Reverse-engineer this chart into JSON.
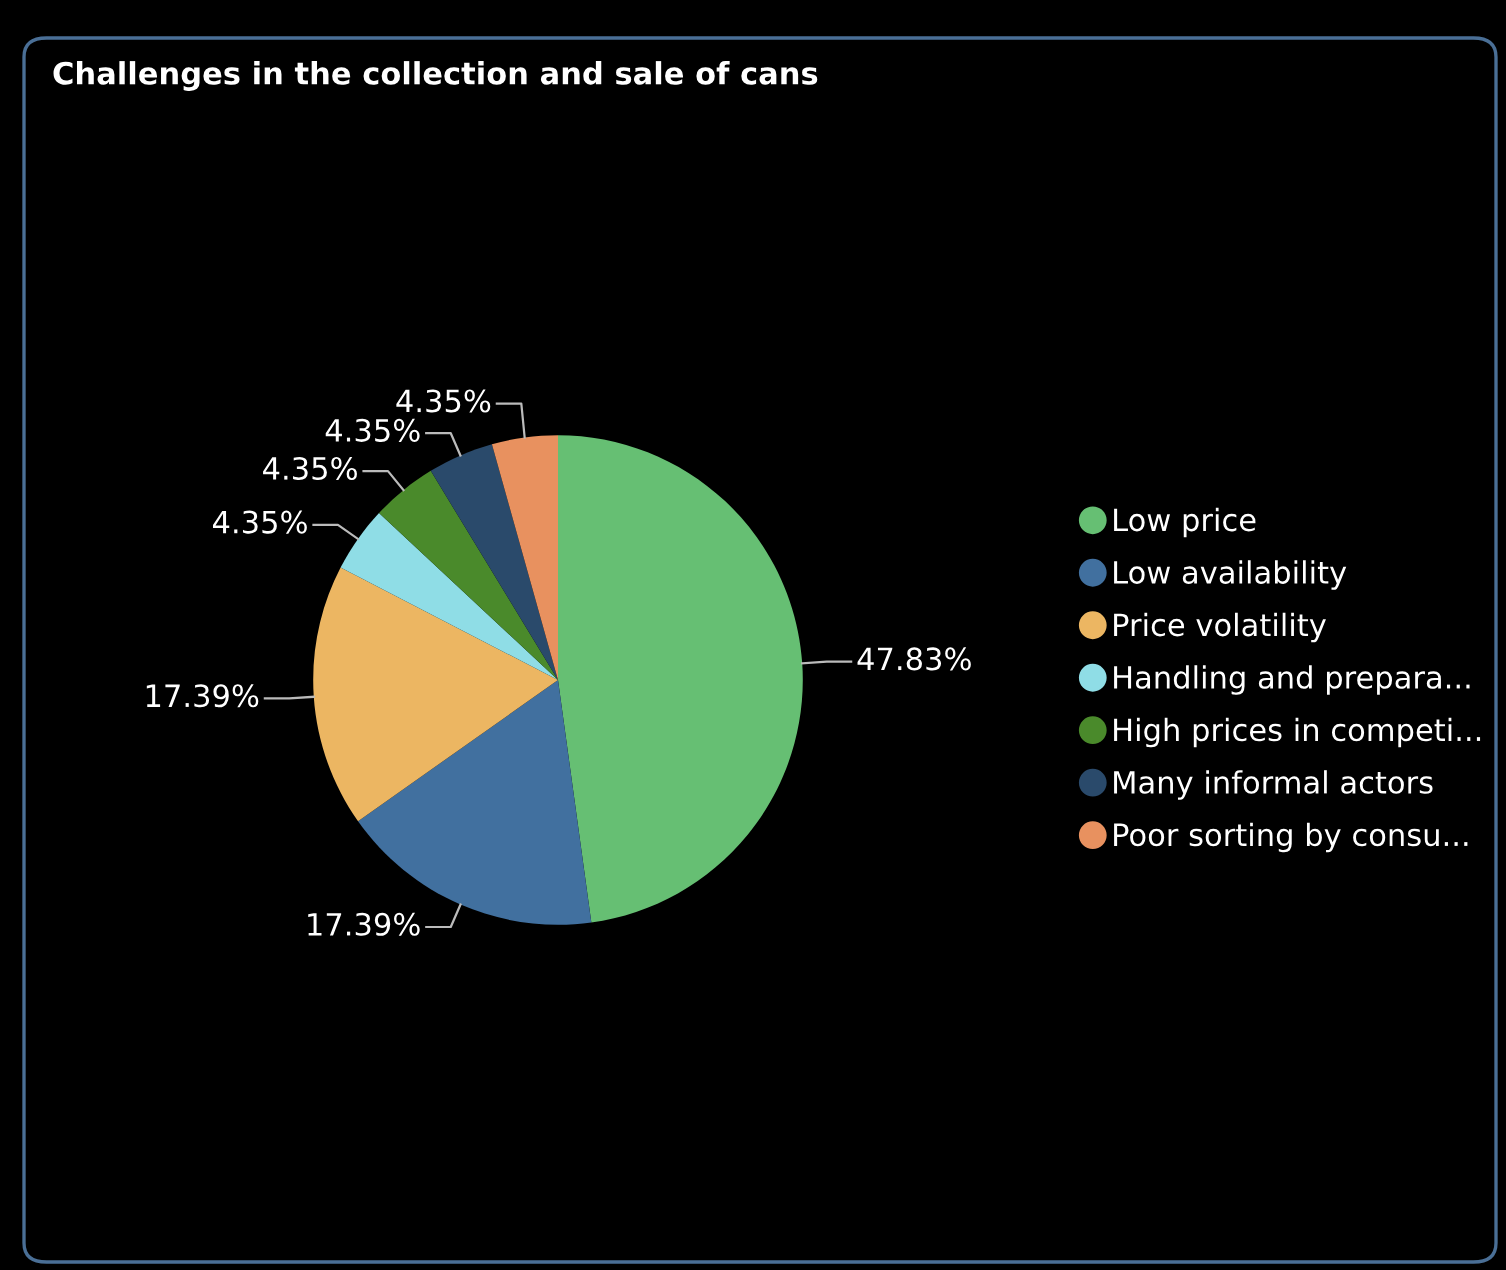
{
  "chart_data": {
    "type": "pie",
    "title": "Challenges in the collection and sale of cans",
    "categories": [
      "Low price",
      "Low availability",
      "Price volatility",
      "Handling and prepara...",
      "High prices in competi...",
      "Many informal actors",
      "Poor sorting by consu..."
    ],
    "values": [
      47.83,
      17.39,
      17.39,
      4.35,
      4.35,
      4.35,
      4.35
    ],
    "value_labels": [
      "47.83%",
      "17.39%",
      "17.39%",
      "4.35%",
      "4.35%",
      "4.35%",
      "4.35%"
    ],
    "colors": [
      "#66bf73",
      "#41709f",
      "#ecb662",
      "#8fdde6",
      "#4a8a2b",
      "#2a4a6b",
      "#e8915f"
    ],
    "legend": "right"
  }
}
